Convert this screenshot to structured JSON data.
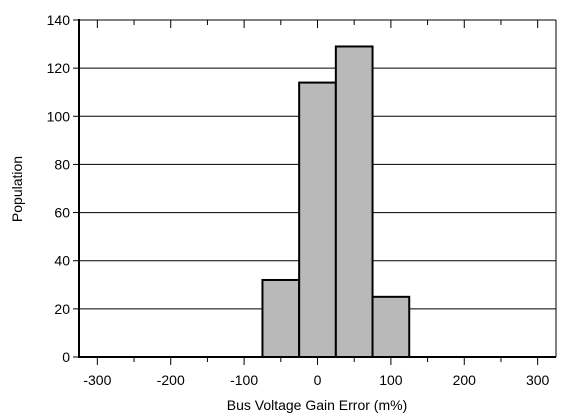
{
  "chart_data": {
    "type": "bar",
    "title": "",
    "xlabel": "Bus Voltage Gain Error (m%)",
    "ylabel": "Population",
    "xlim": [
      -325,
      325
    ],
    "ylim": [
      0,
      140
    ],
    "x_ticks": [
      -300,
      -200,
      -100,
      0,
      100,
      200,
      300
    ],
    "x_tick_labels": [
      "-300",
      "-200",
      "-100",
      "0",
      "100",
      "200",
      "300"
    ],
    "y_ticks": [
      0,
      20,
      40,
      60,
      80,
      100,
      120,
      140
    ],
    "y_tick_labels": [
      "0",
      "20",
      "40",
      "60",
      "80",
      "100",
      "120",
      "140"
    ],
    "bin_width": 50,
    "bins": [
      {
        "x_start": -75,
        "x_end": -25,
        "value": 32
      },
      {
        "x_start": -25,
        "x_end": 25,
        "value": 114
      },
      {
        "x_start": 25,
        "x_end": 75,
        "value": 129
      },
      {
        "x_start": 75,
        "x_end": 125,
        "value": 25
      }
    ],
    "grid": {
      "horizontal": true,
      "vertical": false
    },
    "colors": {
      "bar_fill": "#b9b9b9",
      "bar_stroke": "#000000",
      "grid": "#000000"
    }
  }
}
